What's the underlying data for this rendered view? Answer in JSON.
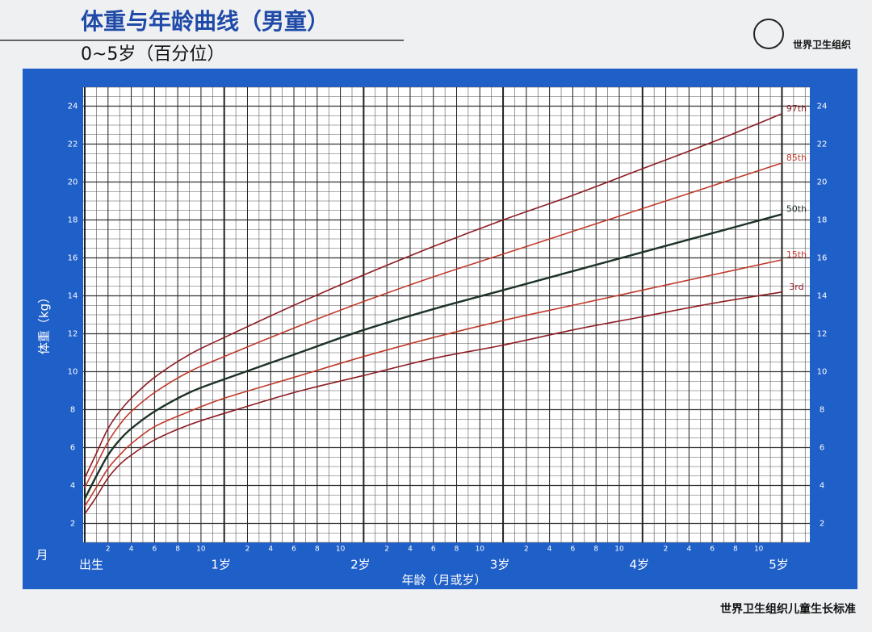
{
  "chart_data": {
    "type": "line",
    "title": "体重与年龄曲线（男童）",
    "subtitle": "0~5岁（百分位）",
    "organization": "世界卫生组织",
    "footer": "世界卫生组织儿童生长标准",
    "y_label": "体重（kg）",
    "x_label": "年龄（月或岁）",
    "x_unit_label": "月",
    "x": [
      0,
      1,
      2,
      3,
      4,
      6,
      9,
      12,
      18,
      24,
      30,
      36,
      42,
      48,
      54,
      60
    ],
    "series": [
      {
        "name": "97th",
        "color": "#8e1c22",
        "values": [
          4.4,
          5.7,
          7.0,
          7.9,
          8.6,
          9.7,
          10.9,
          11.8,
          13.5,
          15.1,
          16.6,
          18.0,
          19.3,
          20.7,
          22.1,
          23.6
        ]
      },
      {
        "name": "85th",
        "color": "#c0392b",
        "values": [
          3.9,
          5.1,
          6.3,
          7.2,
          7.9,
          8.9,
          10.0,
          10.8,
          12.3,
          13.7,
          15.0,
          16.2,
          17.4,
          18.6,
          19.8,
          21.0
        ]
      },
      {
        "name": "50th",
        "color": "#1c3326",
        "values": [
          3.3,
          4.5,
          5.6,
          6.4,
          7.0,
          7.9,
          8.9,
          9.6,
          10.9,
          12.2,
          13.3,
          14.3,
          15.3,
          16.3,
          17.3,
          18.3
        ]
      },
      {
        "name": "15th",
        "color": "#c0392b",
        "values": [
          2.9,
          3.9,
          4.9,
          5.6,
          6.2,
          7.1,
          7.9,
          8.6,
          9.7,
          10.8,
          11.8,
          12.7,
          13.5,
          14.3,
          15.1,
          15.9
        ]
      },
      {
        "name": "3rd",
        "color": "#8e1c22",
        "values": [
          2.5,
          3.4,
          4.4,
          5.1,
          5.6,
          6.4,
          7.2,
          7.8,
          8.9,
          9.8,
          10.7,
          11.4,
          12.2,
          12.9,
          13.6,
          14.2
        ]
      }
    ],
    "xlim": [
      0,
      62.4
    ],
    "ylim": [
      1,
      25
    ],
    "yticks": [
      2,
      4,
      6,
      8,
      10,
      12,
      14,
      16,
      18,
      20,
      22,
      24
    ],
    "xticks": [
      {
        "value": 0,
        "label": "出生"
      },
      2,
      4,
      6,
      8,
      10,
      {
        "value": 12,
        "label": "1岁"
      },
      {
        "value": 14,
        "label": "2"
      },
      {
        "value": 16,
        "label": "4"
      },
      {
        "value": 18,
        "label": "6"
      },
      {
        "value": 20,
        "label": "8"
      },
      {
        "value": 22,
        "label": "10"
      },
      {
        "value": 24,
        "label": "2岁"
      },
      {
        "value": 26,
        "label": "2"
      },
      {
        "value": 28,
        "label": "4"
      },
      {
        "value": 30,
        "label": "6"
      },
      {
        "value": 32,
        "label": "8"
      },
      {
        "value": 34,
        "label": "10"
      },
      {
        "value": 36,
        "label": "3岁"
      },
      {
        "value": 38,
        "label": "2"
      },
      {
        "value": 40,
        "label": "4"
      },
      {
        "value": 42,
        "label": "6"
      },
      {
        "value": 44,
        "label": "8"
      },
      {
        "value": 46,
        "label": "10"
      },
      {
        "value": 48,
        "label": "4岁"
      },
      {
        "value": 50,
        "label": "2"
      },
      {
        "value": 52,
        "label": "4"
      },
      {
        "value": 54,
        "label": "6"
      },
      {
        "value": 56,
        "label": "8"
      },
      {
        "value": 58,
        "label": "10"
      },
      {
        "value": 60,
        "label": "5岁"
      }
    ],
    "grid": true
  }
}
